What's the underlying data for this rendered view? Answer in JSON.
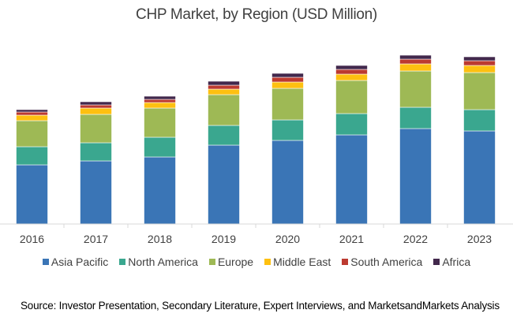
{
  "chart_data": {
    "type": "bar",
    "stacked": true,
    "title": "CHP Market, by Region (USD Million)",
    "xlabel": "",
    "ylabel": "",
    "y_axis_shown": false,
    "grid": false,
    "legend_position": "bottom",
    "categories": [
      "2016",
      "2017",
      "2018",
      "2019",
      "2020",
      "2021",
      "2022",
      "2023"
    ],
    "ylim": [
      0,
      220
    ],
    "series": [
      {
        "name": "Asia Pacific",
        "color": "#3a75b6",
        "values": [
          75,
          80,
          85,
          100,
          106,
          113,
          121,
          118
        ]
      },
      {
        "name": "North America",
        "color": "#3aa78f",
        "values": [
          23,
          23,
          25,
          25,
          26,
          27,
          27,
          27
        ]
      },
      {
        "name": "Europe",
        "color": "#9eb955",
        "values": [
          33,
          36,
          37,
          39,
          40,
          42,
          46,
          47
        ]
      },
      {
        "name": "Middle East",
        "color": "#fec010",
        "values": [
          7,
          8,
          7,
          7,
          8,
          8,
          9,
          9
        ]
      },
      {
        "name": "South America",
        "color": "#bc3a30",
        "values": [
          4,
          4,
          4,
          5,
          6,
          6,
          6,
          6
        ]
      },
      {
        "name": "Africa",
        "color": "#42284c",
        "values": [
          3,
          4,
          4,
          5,
          5,
          5,
          5,
          5
        ]
      }
    ]
  },
  "source": "Source: Investor Presentation, Secondary Literature, Expert Interviews, and MarketsandMarkets Analysis"
}
